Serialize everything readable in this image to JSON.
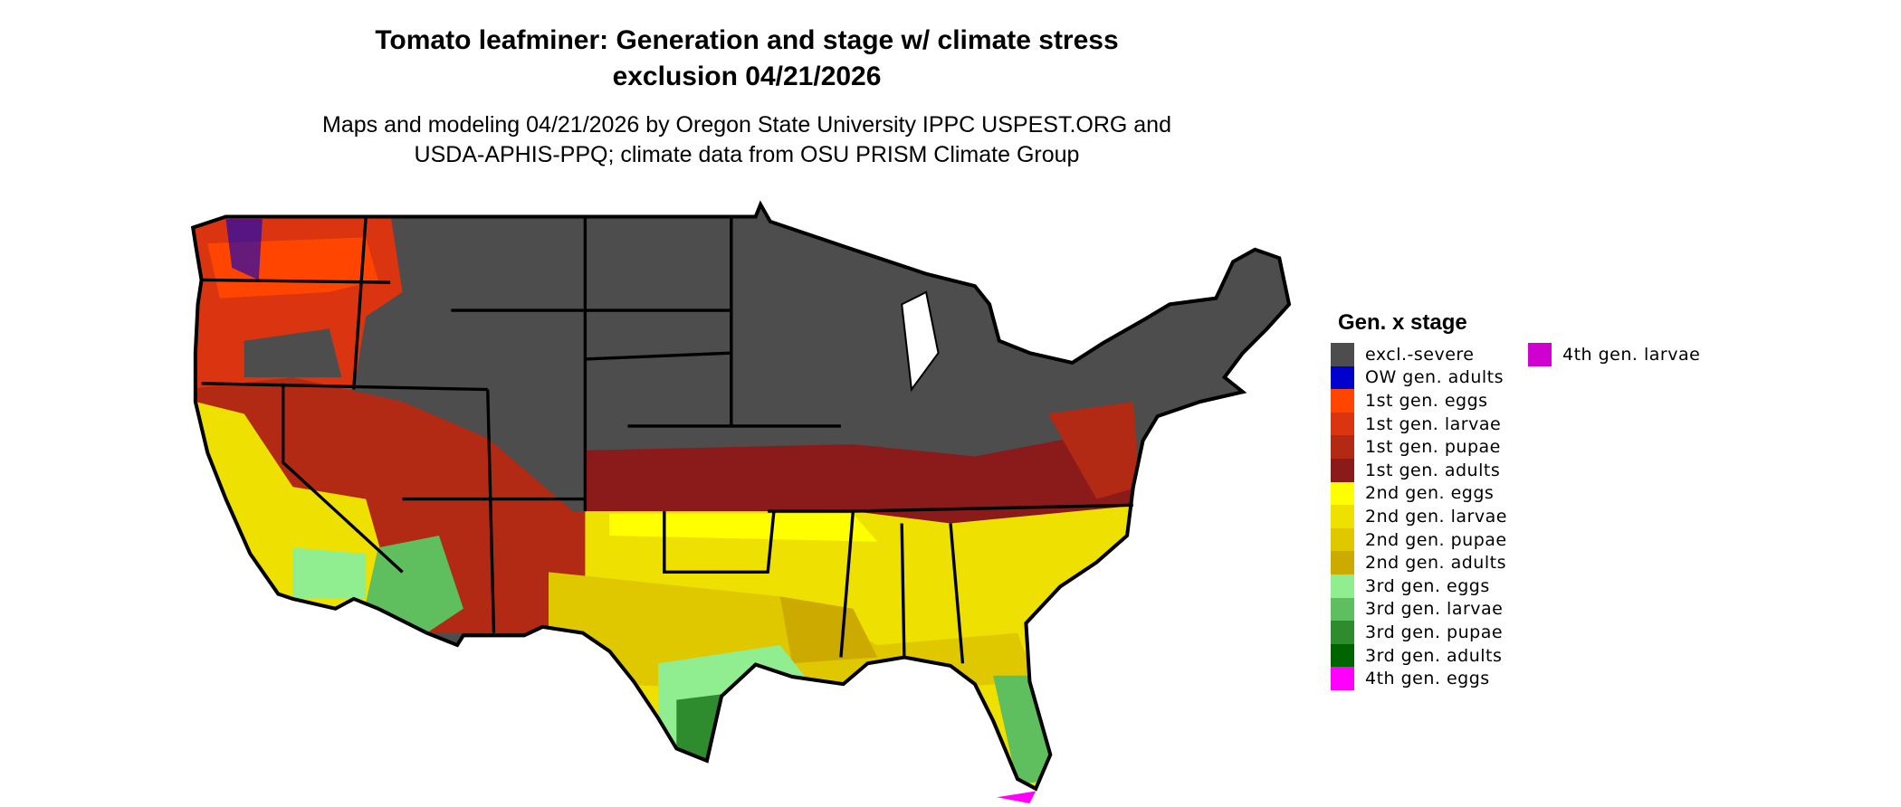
{
  "title": {
    "line1": "Tomato leafminer: Generation and stage w/ climate stress",
    "line2": "exclusion 04/21/2026"
  },
  "subtitle": {
    "line1": "Maps and modeling 04/21/2026 by Oregon State University IPPC USPEST.ORG and",
    "line2": "USDA-APHIS-PPQ; climate data from OSU PRISM Climate Group"
  },
  "legend": {
    "title": "Gen. x stage",
    "items": [
      {
        "label": "excl.-severe",
        "color": "#4d4d4d"
      },
      {
        "label": "OW gen. adults",
        "color": "#0000cd"
      },
      {
        "label": "1st gen. eggs",
        "color": "#ff4500"
      },
      {
        "label": "1st gen. larvae",
        "color": "#da3510"
      },
      {
        "label": "1st gen. pupae",
        "color": "#b22a14"
      },
      {
        "label": "1st gen. adults",
        "color": "#8b1a1a"
      },
      {
        "label": "2nd gen. eggs",
        "color": "#ffff00"
      },
      {
        "label": "2nd gen. larvae",
        "color": "#eee000"
      },
      {
        "label": "2nd gen. pupae",
        "color": "#e0c800"
      },
      {
        "label": "2nd gen. adults",
        "color": "#cdaa00"
      },
      {
        "label": "3rd gen. eggs",
        "color": "#90ee90"
      },
      {
        "label": "3rd gen. larvae",
        "color": "#5fbf5f"
      },
      {
        "label": "3rd gen. pupae",
        "color": "#2e8b2e"
      },
      {
        "label": "3rd gen. adults",
        "color": "#006400"
      },
      {
        "label": "4th gen. eggs",
        "color": "#ff00ff"
      },
      {
        "label": "4th gen. larvae",
        "color": "#d000d0"
      }
    ]
  }
}
